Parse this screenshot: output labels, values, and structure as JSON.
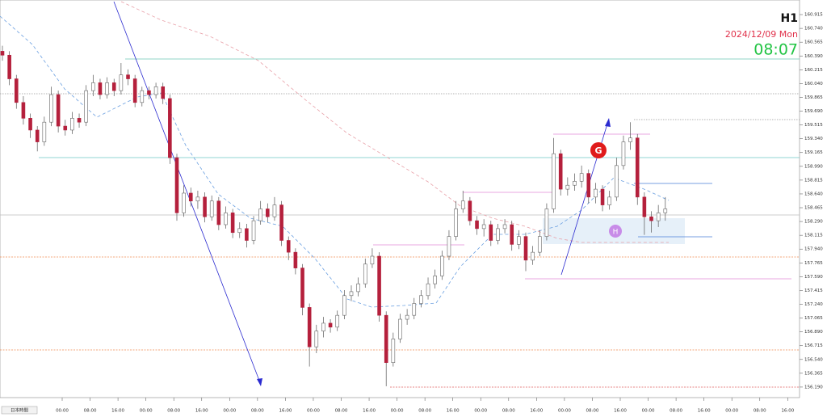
{
  "chart_data": {
    "type": "candlestick",
    "timeframe": "H1",
    "date": "2024/12/09 Mon",
    "time": "08:07",
    "axis_label": "日本時間",
    "annotations": [
      "G",
      "H"
    ],
    "up_color": "#ffffff",
    "down_color": "#b5203c",
    "ylim": [
      156.056,
      161.1
    ],
    "yticks": [
      160.915,
      {
        "value": 160.74,
        "label": "160.740"
      },
      160.565,
      {
        "value": 160.39,
        "label": "160.390"
      },
      160.215,
      {
        "value": 160.04,
        "label": "160.040"
      },
      159.865,
      {
        "value": 159.69,
        "label": "159.690"
      },
      159.515,
      {
        "value": 159.34,
        "label": "159.340"
      },
      159.165,
      {
        "value": 158.99,
        "label": "158.990"
      },
      158.815,
      {
        "value": 158.64,
        "label": "158.640"
      },
      158.465,
      {
        "value": 158.29,
        "label": "158.290"
      },
      158.115,
      {
        "value": 157.94,
        "label": "157.940"
      },
      157.765,
      {
        "value": 157.59,
        "label": "157.590"
      },
      157.415,
      {
        "value": 157.24,
        "label": "157.240"
      },
      157.065,
      {
        "value": 156.89,
        "label": "156.890"
      },
      156.715,
      {
        "value": 156.54,
        "label": "156.540"
      },
      156.365,
      {
        "value": 156.19,
        "label": "156.190"
      }
    ],
    "time_labels": [
      "00:00",
      "08:00",
      "16:00",
      "00:00",
      "08:00",
      "16:00",
      "00:00",
      "08:00",
      "16:00",
      "00:00",
      "08:00",
      "16:00",
      "00:00",
      "08:00",
      "16:00",
      "00:00",
      "08:00",
      "16:00",
      "00:00",
      "08:00",
      "16:00",
      "00:00",
      "08:00",
      "16:00",
      "00:00",
      "08:00",
      "16:00"
    ],
    "open": [
      160.45,
      160.4,
      160.1,
      159.8,
      159.6,
      159.45,
      159.3,
      159.55,
      159.9,
      159.5,
      159.45,
      159.6,
      159.55,
      159.95,
      160.05,
      159.9,
      160.05,
      159.95,
      160.15,
      160.1,
      159.8,
      159.95,
      159.9,
      160.0,
      159.85,
      159.1,
      158.4,
      158.65,
      158.55,
      158.6,
      158.35,
      158.55,
      158.25,
      158.4,
      158.15,
      158.2,
      158.05,
      158.3,
      158.45,
      158.35,
      158.5,
      158.05,
      157.9,
      157.7,
      157.2,
      156.7,
      156.9,
      157.0,
      156.95,
      157.1,
      157.35,
      157.4,
      157.5,
      157.75,
      157.85,
      157.1,
      156.5,
      156.8,
      157.05,
      157.1,
      157.25,
      157.35,
      157.5,
      157.6,
      157.85,
      158.1,
      158.45,
      158.55,
      158.3,
      158.2,
      158.25,
      158.05,
      158.2,
      158.25,
      158.0,
      158.1,
      157.8,
      157.9,
      158.1,
      158.45,
      159.15,
      158.7,
      158.75,
      158.8,
      158.9,
      158.6,
      158.7,
      158.5,
      158.6,
      159.0,
      159.3,
      159.35,
      158.6,
      158.35,
      158.3,
      158.4
    ],
    "high": [
      160.52,
      160.45,
      160.15,
      159.88,
      159.66,
      159.5,
      159.62,
      160.0,
      159.95,
      159.58,
      159.68,
      159.66,
      160.02,
      160.15,
      160.1,
      160.12,
      160.1,
      160.3,
      160.22,
      160.15,
      160.0,
      160.0,
      160.05,
      160.05,
      159.9,
      159.15,
      158.75,
      158.72,
      158.68,
      158.66,
      158.62,
      158.6,
      158.48,
      158.45,
      158.28,
      158.26,
      158.36,
      158.55,
      158.52,
      158.6,
      158.55,
      158.1,
      157.95,
      157.75,
      157.25,
      156.98,
      157.08,
      157.05,
      157.16,
      157.42,
      157.48,
      157.58,
      157.82,
      157.95,
      157.9,
      157.15,
      156.88,
      157.12,
      157.18,
      157.32,
      157.42,
      157.58,
      157.68,
      157.92,
      158.18,
      158.55,
      158.68,
      158.6,
      158.36,
      158.32,
      158.3,
      158.26,
      158.32,
      158.3,
      158.18,
      158.15,
      157.98,
      158.18,
      158.52,
      159.35,
      159.2,
      158.85,
      158.9,
      159.0,
      158.95,
      158.78,
      158.75,
      158.68,
      159.1,
      159.38,
      159.55,
      159.4,
      158.66,
      158.42,
      158.5,
      158.6
    ],
    "low": [
      160.33,
      160.02,
      159.72,
      159.52,
      159.35,
      159.18,
      159.25,
      159.5,
      159.42,
      159.38,
      159.4,
      159.48,
      159.5,
      159.88,
      159.84,
      159.85,
      159.88,
      159.9,
      160.02,
      159.74,
      159.75,
      159.84,
      159.85,
      159.78,
      159.02,
      158.3,
      158.35,
      158.48,
      158.45,
      158.28,
      158.3,
      158.18,
      158.2,
      158.08,
      158.08,
      157.96,
      158.0,
      158.25,
      158.28,
      158.3,
      157.98,
      157.8,
      157.62,
      157.1,
      156.45,
      156.62,
      156.82,
      156.88,
      156.9,
      157.05,
      157.28,
      157.34,
      157.45,
      157.7,
      157.02,
      156.2,
      156.45,
      156.75,
      156.98,
      157.05,
      157.2,
      157.3,
      157.44,
      157.55,
      157.8,
      158.05,
      158.4,
      158.24,
      158.12,
      158.1,
      157.98,
      158.0,
      158.14,
      157.92,
      157.94,
      157.66,
      157.74,
      157.85,
      158.05,
      158.4,
      158.62,
      158.62,
      158.68,
      158.72,
      158.52,
      158.52,
      158.42,
      158.44,
      158.55,
      158.95,
      159.2,
      158.5,
      158.12,
      158.15,
      158.22,
      158.3
    ],
    "close": [
      160.4,
      160.1,
      159.8,
      159.6,
      159.45,
      159.3,
      159.55,
      159.9,
      159.5,
      159.45,
      159.6,
      159.55,
      159.95,
      160.05,
      159.9,
      160.05,
      159.95,
      160.15,
      160.1,
      159.8,
      159.95,
      159.9,
      160.0,
      159.85,
      159.1,
      158.4,
      158.65,
      158.55,
      158.6,
      158.35,
      158.55,
      158.25,
      158.4,
      158.15,
      158.2,
      158.05,
      158.3,
      158.45,
      158.35,
      158.5,
      158.05,
      157.9,
      157.7,
      157.2,
      156.7,
      156.9,
      157.0,
      156.95,
      157.1,
      157.35,
      157.4,
      157.5,
      157.75,
      157.85,
      157.1,
      156.5,
      156.8,
      157.05,
      157.1,
      157.25,
      157.35,
      157.5,
      157.6,
      157.85,
      158.1,
      158.45,
      158.55,
      158.3,
      158.2,
      158.25,
      158.05,
      158.2,
      158.25,
      158.0,
      158.1,
      157.8,
      157.9,
      158.1,
      158.45,
      159.15,
      158.7,
      158.75,
      158.8,
      158.9,
      158.6,
      158.7,
      158.5,
      158.6,
      159.0,
      159.3,
      159.35,
      158.6,
      158.35,
      158.3,
      158.4,
      158.45
    ]
  }
}
